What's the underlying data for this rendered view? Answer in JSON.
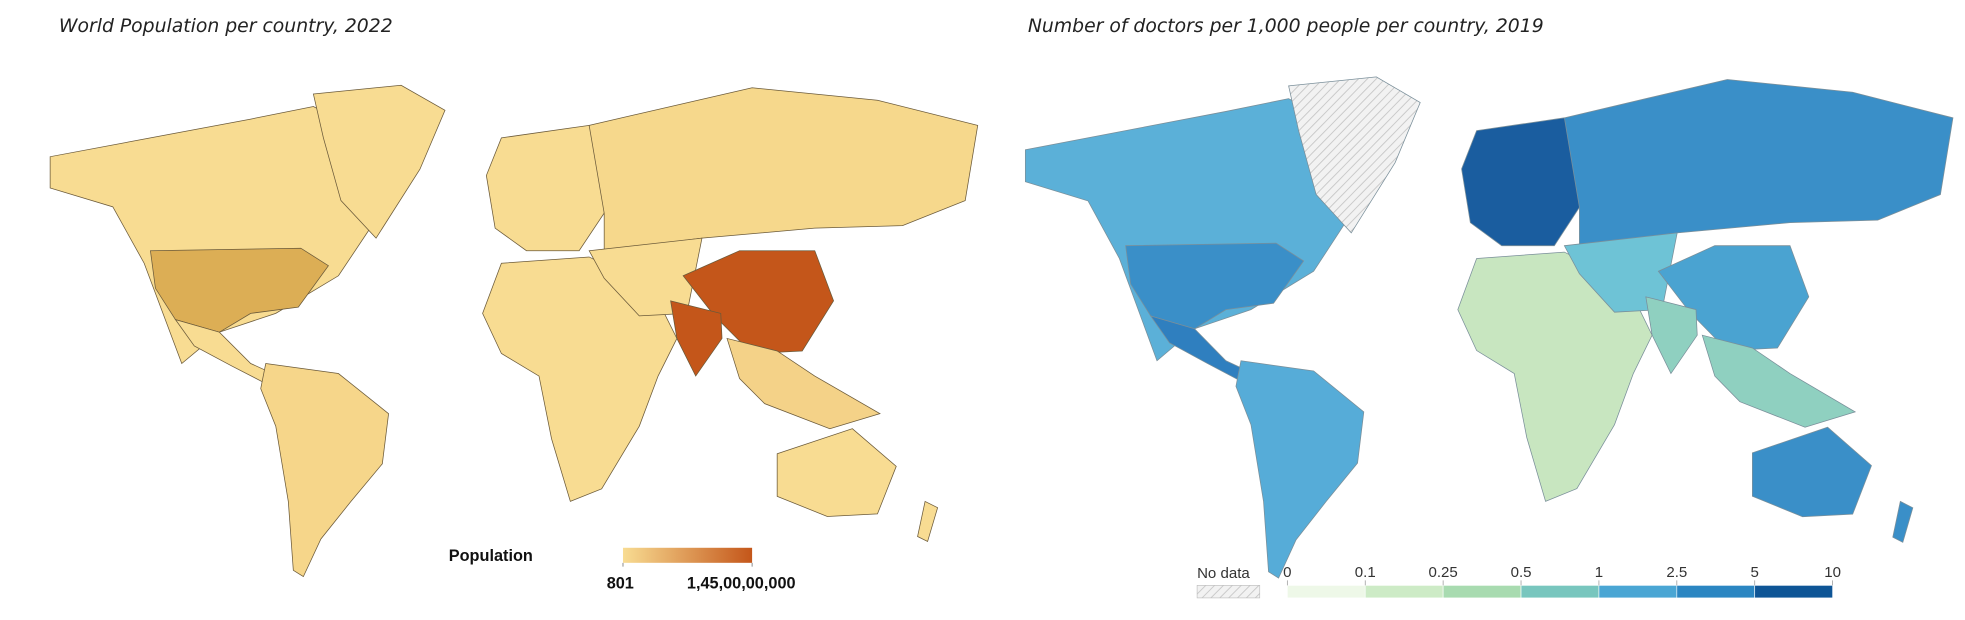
{
  "maps": [
    {
      "title": "World Population per country, 2022",
      "legend": {
        "title": "Population",
        "colors": [
          "#f8dc92",
          "#c4561a"
        ],
        "ticks": [
          801,
          {
            "value": 1450000000,
            "label": "1,45,00,00,000"
          }
        ]
      }
    },
    {
      "title": "Number of doctors per 1,000 people per country, 2019",
      "legend": {
        "no_data": "No data",
        "ticks": [
          0,
          0.1,
          0.25,
          0.5,
          1,
          2.5,
          5,
          10
        ],
        "colors": [
          "#eef8e8",
          "#cdebc6",
          "#a8dbb0",
          "#78c6be",
          "#4aa6d4",
          "#2b86c2",
          "#0e5596"
        ]
      }
    }
  ]
}
